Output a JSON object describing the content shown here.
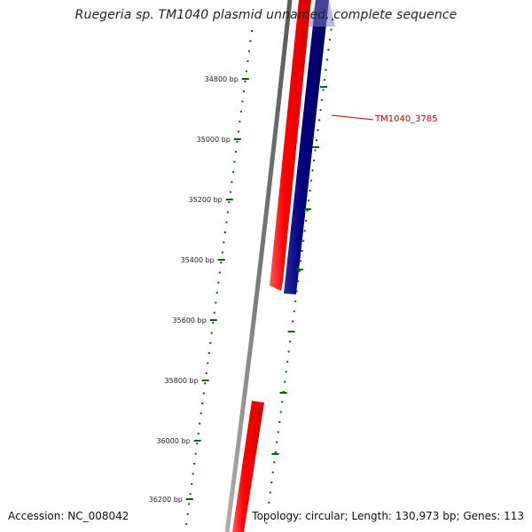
{
  "title": "Ruegeria sp. TM1040 plasmid unnamed, complete sequence",
  "footer": {
    "accession": "Accession: NC_008042",
    "summary": "Topology: circular; Length: 130,973 bp; Genes: 113"
  },
  "ticks": [
    "34800 bp",
    "35000 bp",
    "35200 bp",
    "35400 bp",
    "35600 bp",
    "35800 bp",
    "36000 bp",
    "36200 bp"
  ],
  "gene_label": "TM1040_3785",
  "colors": {
    "forward_gene": "#ff0000",
    "reverse_gene": "#00007f",
    "backbone": "#808080",
    "ticks": "#006400",
    "label": "#cc0000"
  }
}
